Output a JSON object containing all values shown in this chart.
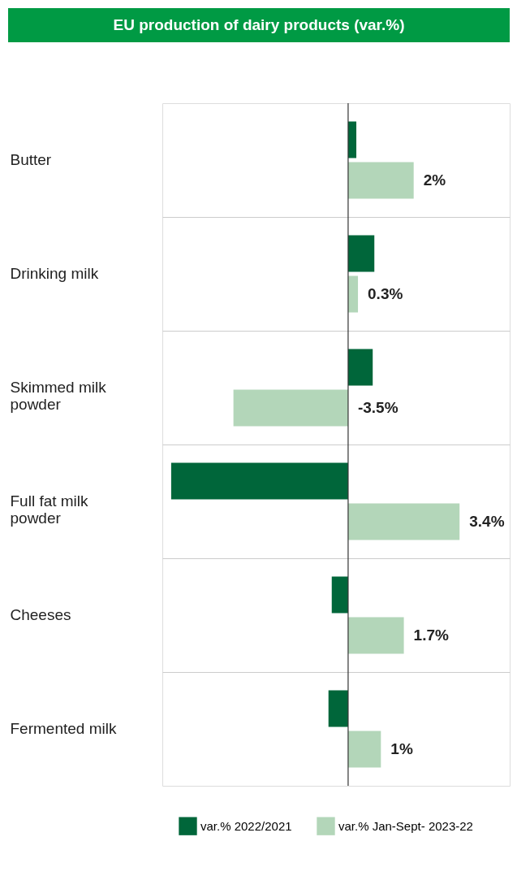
{
  "chart_data": {
    "type": "bar",
    "orientation": "horizontal",
    "title": "EU production of dairy products (var.%)",
    "categories": [
      "Butter",
      "Drinking milk",
      "Skimmed milk powder",
      "Full fat milk powder",
      "Cheeses",
      "Fermented milk"
    ],
    "series": [
      {
        "name": "var.% 2022/2021",
        "color": "#00663a",
        "values": [
          0.25,
          0.8,
          0.75,
          -5.4,
          -0.5,
          -0.6
        ]
      },
      {
        "name": "var.% Jan-Sept- 2023-22",
        "color": "#b3d6b9",
        "values": [
          2,
          0.3,
          -3.5,
          3.4,
          1.7,
          1
        ],
        "value_labels": [
          "2%",
          "0.3%",
          "-3.5%",
          "3.4%",
          "1.7%",
          "1%"
        ]
      }
    ],
    "grid": "y",
    "legend": "bottom",
    "tick_labels": "y"
  }
}
